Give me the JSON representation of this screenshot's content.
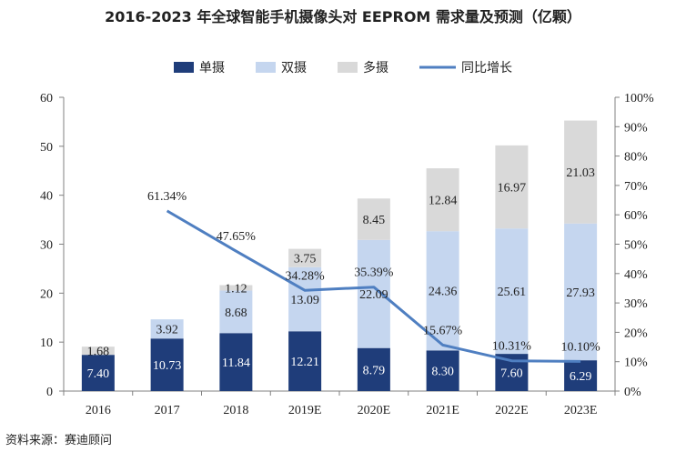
{
  "chart_data": {
    "type": "bar",
    "title": "2016-2023 年全球智能手机摄像头对 EEPROM 需求量及预测（亿颗）",
    "source": "资料来源：赛迪顾问",
    "categories": [
      "2016",
      "2017",
      "2018",
      "2019E",
      "2020E",
      "2021E",
      "2022E",
      "2023E"
    ],
    "series": [
      {
        "name": "单摄",
        "color": "#1f3d7a",
        "values": [
          7.4,
          10.73,
          11.84,
          12.21,
          8.79,
          8.3,
          7.6,
          6.29
        ],
        "labels": [
          "7.40",
          "10.73",
          "11.84",
          "12.21",
          "8.79",
          "8.30",
          "7.60",
          "6.29"
        ]
      },
      {
        "name": "双摄",
        "color": "#c5d6ef",
        "values": [
          0,
          3.92,
          8.68,
          13.09,
          22.09,
          24.36,
          25.61,
          27.93
        ],
        "labels": [
          "",
          "3.92",
          "8.68",
          "13.09",
          "22.09",
          "24.36",
          "25.61",
          "27.93"
        ]
      },
      {
        "name": "多摄",
        "color": "#d9d9d9",
        "values": [
          1.68,
          0,
          1.12,
          3.75,
          8.45,
          12.84,
          16.97,
          21.03
        ],
        "labels": [
          "1.68",
          "",
          "1.12",
          "3.75",
          "8.45",
          "12.84",
          "16.97",
          "21.03"
        ]
      }
    ],
    "line": {
      "name": "同比增长",
      "color": "#4f7fc1",
      "values": [
        null,
        61.34,
        47.65,
        34.28,
        35.39,
        15.67,
        10.31,
        10.1
      ],
      "labels": [
        "",
        "61.34%",
        "47.65%",
        "34.28%",
        "35.39%",
        "15.67%",
        "10.31%",
        "10.10%"
      ]
    },
    "yleft": {
      "min": 0,
      "max": 60,
      "step": 10,
      "ticks": [
        "0",
        "10",
        "20",
        "30",
        "40",
        "50",
        "60"
      ]
    },
    "yright": {
      "min": 0,
      "max": 100,
      "step": 10,
      "ticks": [
        "0%",
        "10%",
        "20%",
        "30%",
        "40%",
        "50%",
        "60%",
        "70%",
        "80%",
        "90%",
        "100%"
      ]
    },
    "legend_position": "top-center",
    "grid": false
  }
}
